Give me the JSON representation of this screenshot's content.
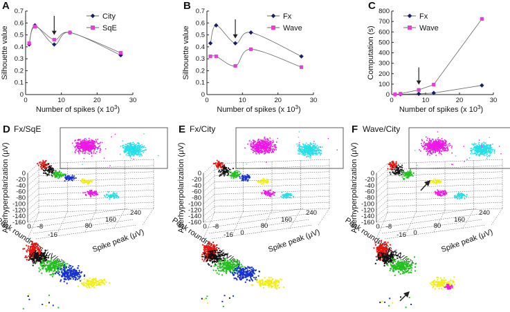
{
  "colors": {
    "series_primary": "#1a1f6b",
    "series_secondary": "#e43fd8",
    "cluster_red": "#e8150f",
    "cluster_black": "#111111",
    "cluster_green": "#25c020",
    "cluster_blue": "#1732cf",
    "cluster_yellow": "#f2ee14",
    "cluster_magenta": "#ee18e6",
    "cluster_cyan": "#25dfe6",
    "grid": "#444444"
  },
  "chart_data": [
    {
      "id": "A",
      "type": "line",
      "panel_label": "A",
      "xlabel": "Number of spikes (x 10",
      "xlabel_sup": "3",
      "xlabel_end": ")",
      "ylabel": "Silhouette value",
      "xlim": [
        0,
        30
      ],
      "ylim": [
        0,
        0.7
      ],
      "xticks": [
        "0",
        "10",
        "20",
        "30"
      ],
      "yticks": [
        "0",
        "0.1",
        "0.2",
        "0.3",
        "0.4",
        "0.5",
        "0.6",
        "0.7"
      ],
      "x": [
        1,
        2.6,
        8,
        12.4,
        26.6
      ],
      "series": [
        {
          "name": "City",
          "marker": "diamond",
          "values": [
            0.42,
            0.58,
            0.42,
            0.52,
            0.33
          ]
        },
        {
          "name": "SqE",
          "marker": "square",
          "values": [
            0.43,
            0.57,
            0.46,
            0.52,
            0.35
          ]
        }
      ],
      "arrow_x": 8,
      "legend": "top-right"
    },
    {
      "id": "B",
      "type": "line",
      "panel_label": "B",
      "xlabel": "Number of spikes (x 10",
      "xlabel_sup": "3",
      "xlabel_end": ")",
      "ylabel": "Silhouette value",
      "xlim": [
        0,
        30
      ],
      "ylim": [
        0,
        0.7
      ],
      "xticks": [
        "0",
        "10",
        "20",
        "30"
      ],
      "yticks": [
        "0",
        "0.1",
        "0.2",
        "0.3",
        "0.4",
        "0.5",
        "0.6",
        "0.7"
      ],
      "x": [
        1,
        2.6,
        8,
        12.4,
        26.6
      ],
      "series": [
        {
          "name": "Fx",
          "marker": "diamond",
          "values": [
            0.43,
            0.58,
            0.43,
            0.52,
            0.32
          ]
        },
        {
          "name": "Wave",
          "marker": "square",
          "values": [
            0.32,
            0.32,
            0.24,
            0.38,
            0.23
          ]
        }
      ],
      "arrow_x": 8,
      "legend": "top-right"
    },
    {
      "id": "C",
      "type": "line",
      "panel_label": "C",
      "xlabel": "Number of spikes (x 10",
      "xlabel_sup": "3",
      "xlabel_end": ")",
      "ylabel": "Computation (s)",
      "xlim": [
        0,
        30
      ],
      "ylim": [
        0,
        800
      ],
      "xticks": [
        "0",
        "10",
        "20",
        "30"
      ],
      "yticks": [
        "0",
        "100",
        "200",
        "300",
        "400",
        "500",
        "600",
        "700",
        "800"
      ],
      "x": [
        1,
        2.6,
        8,
        12.4,
        26.6
      ],
      "series": [
        {
          "name": "Fx",
          "marker": "diamond",
          "values": [
            1,
            3,
            7,
            15,
            88
          ]
        },
        {
          "name": "Wave",
          "marker": "square",
          "values": [
            2,
            8,
            45,
            95,
            725
          ]
        }
      ],
      "arrow_x": 8,
      "legend": "top-left"
    },
    {
      "id": "D",
      "type": "scatter",
      "panel_label": "D",
      "subtitle": "Fx/SqE",
      "zlabel": "Afterhyperpolarization (μV)",
      "ylabel": "Peak roundness (μV/s²)",
      "xlabel": "Spike peak (μV)",
      "z_ticks": [
        "0",
        "-20",
        "-40",
        "-60",
        "-80",
        "-100",
        "-120",
        "-140",
        "-160"
      ],
      "roundness_ticks": [
        "0",
        "-8",
        "-16"
      ],
      "peak_ticks": [
        "80",
        "160",
        "240"
      ],
      "clusters": [
        "red",
        "black",
        "green",
        "blue",
        "yellow",
        "magenta",
        "cyan"
      ],
      "arrow": false
    },
    {
      "id": "E",
      "type": "scatter",
      "panel_label": "E",
      "subtitle": "Fx/City",
      "zlabel": "Afterhyperpolarization (μV)",
      "ylabel": "Peak roundness (μV/s²)",
      "xlabel": "Spike peak (μV)",
      "z_ticks": [
        "0",
        "-20",
        "-40",
        "-60",
        "-80",
        "-100",
        "-120",
        "-140",
        "-160"
      ],
      "roundness_ticks": [
        "0",
        "-8",
        "-16"
      ],
      "peak_ticks": [
        "0",
        "80",
        "160",
        "240"
      ],
      "clusters": [
        "red",
        "black",
        "green",
        "blue",
        "yellow",
        "magenta",
        "cyan"
      ],
      "arrow": false
    },
    {
      "id": "F",
      "type": "scatter",
      "panel_label": "F",
      "subtitle": "Wave/City",
      "zlabel": "Afterhyperpolarization (μV)",
      "ylabel": "Peak roundness (μV/s²)",
      "xlabel": "Spike peak (μV)",
      "z_ticks": [
        "0",
        "-20",
        "-40",
        "-60",
        "-80",
        "-100",
        "-120",
        "-140",
        "-160"
      ],
      "roundness_ticks": [
        "0",
        "-8",
        "-16"
      ],
      "peak_ticks": [
        "0",
        "80",
        "160",
        "240"
      ],
      "clusters": [
        "red",
        "black",
        "green",
        "yellow",
        "magenta",
        "cyan"
      ],
      "arrow": true
    }
  ]
}
